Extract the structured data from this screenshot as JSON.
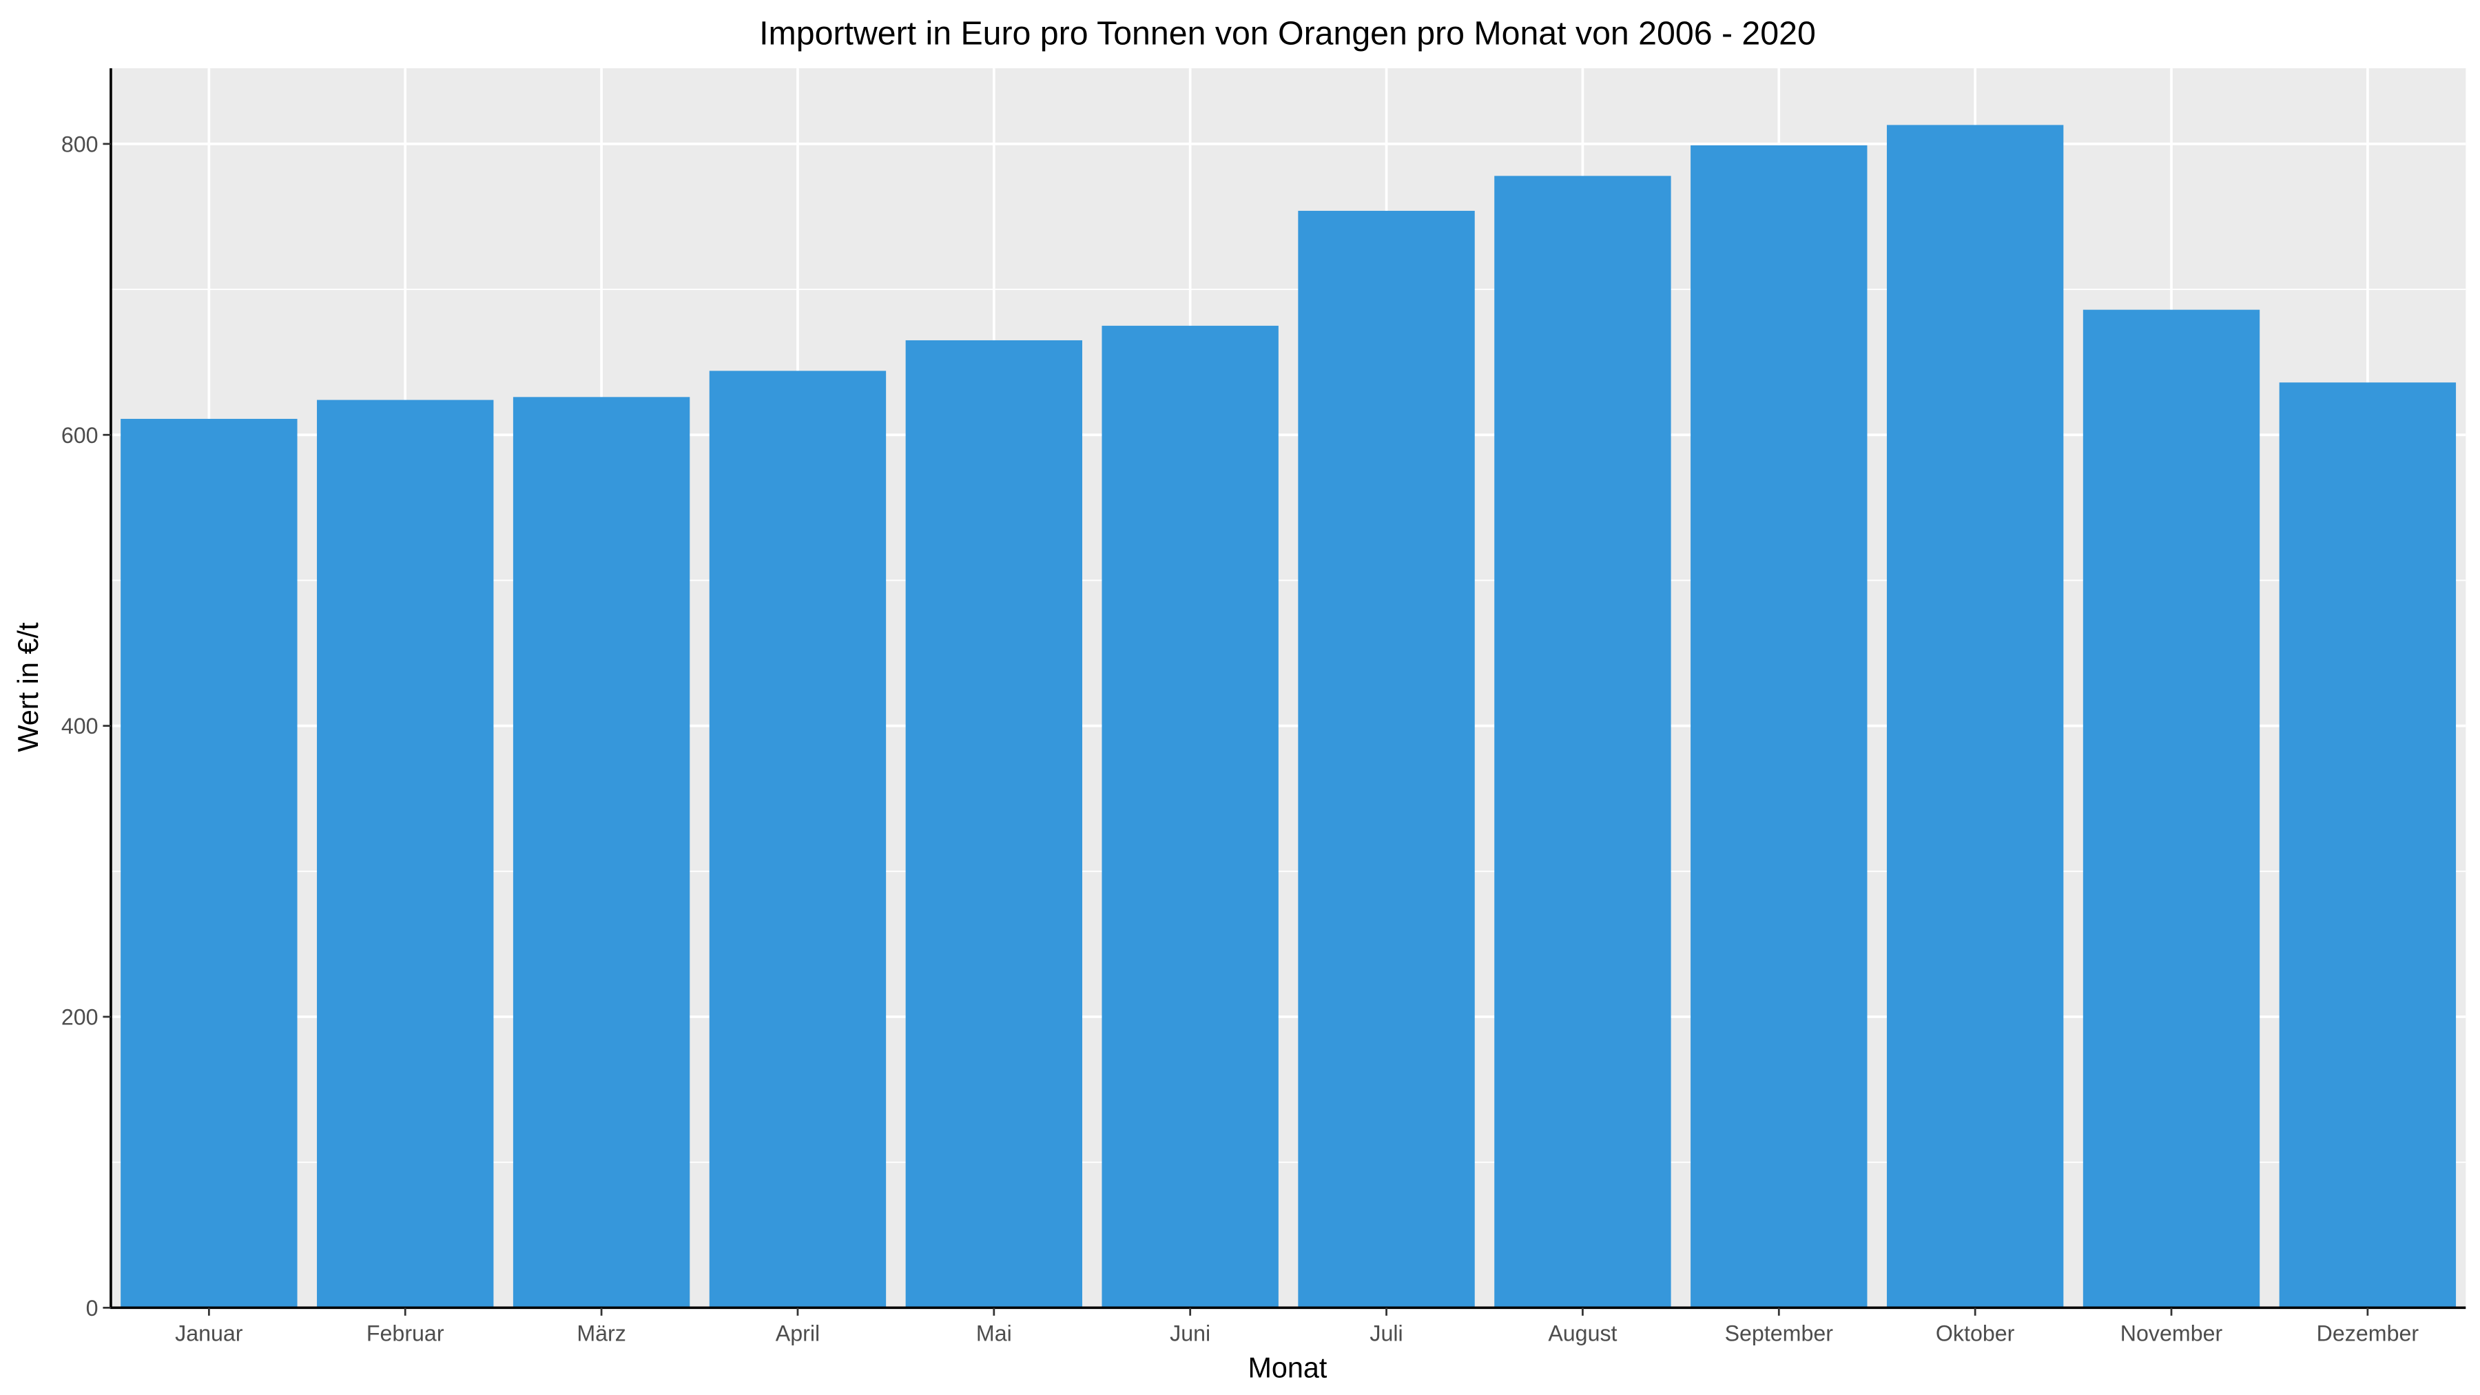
{
  "chart_data": {
    "type": "bar",
    "title": "Importwert in Euro pro Tonnen von Orangen pro Monat von 2006 - 2020",
    "xlabel": "Monat",
    "ylabel": "Wert in €/t",
    "categories": [
      "Januar",
      "Februar",
      "März",
      "April",
      "Mai",
      "Juni",
      "Juli",
      "August",
      "September",
      "Oktober",
      "November",
      "Dezember"
    ],
    "values": [
      611,
      624,
      626,
      644,
      665,
      675,
      754,
      778,
      799,
      813,
      686,
      636
    ],
    "ylim": [
      0,
      852
    ],
    "yticks": [
      0,
      200,
      400,
      600,
      800
    ],
    "grid": true,
    "legend": "none",
    "colors": {
      "bar": "#3697DB",
      "panel": "#EBEBEB",
      "grid": "#FFFFFF",
      "axis": "#000000"
    }
  }
}
